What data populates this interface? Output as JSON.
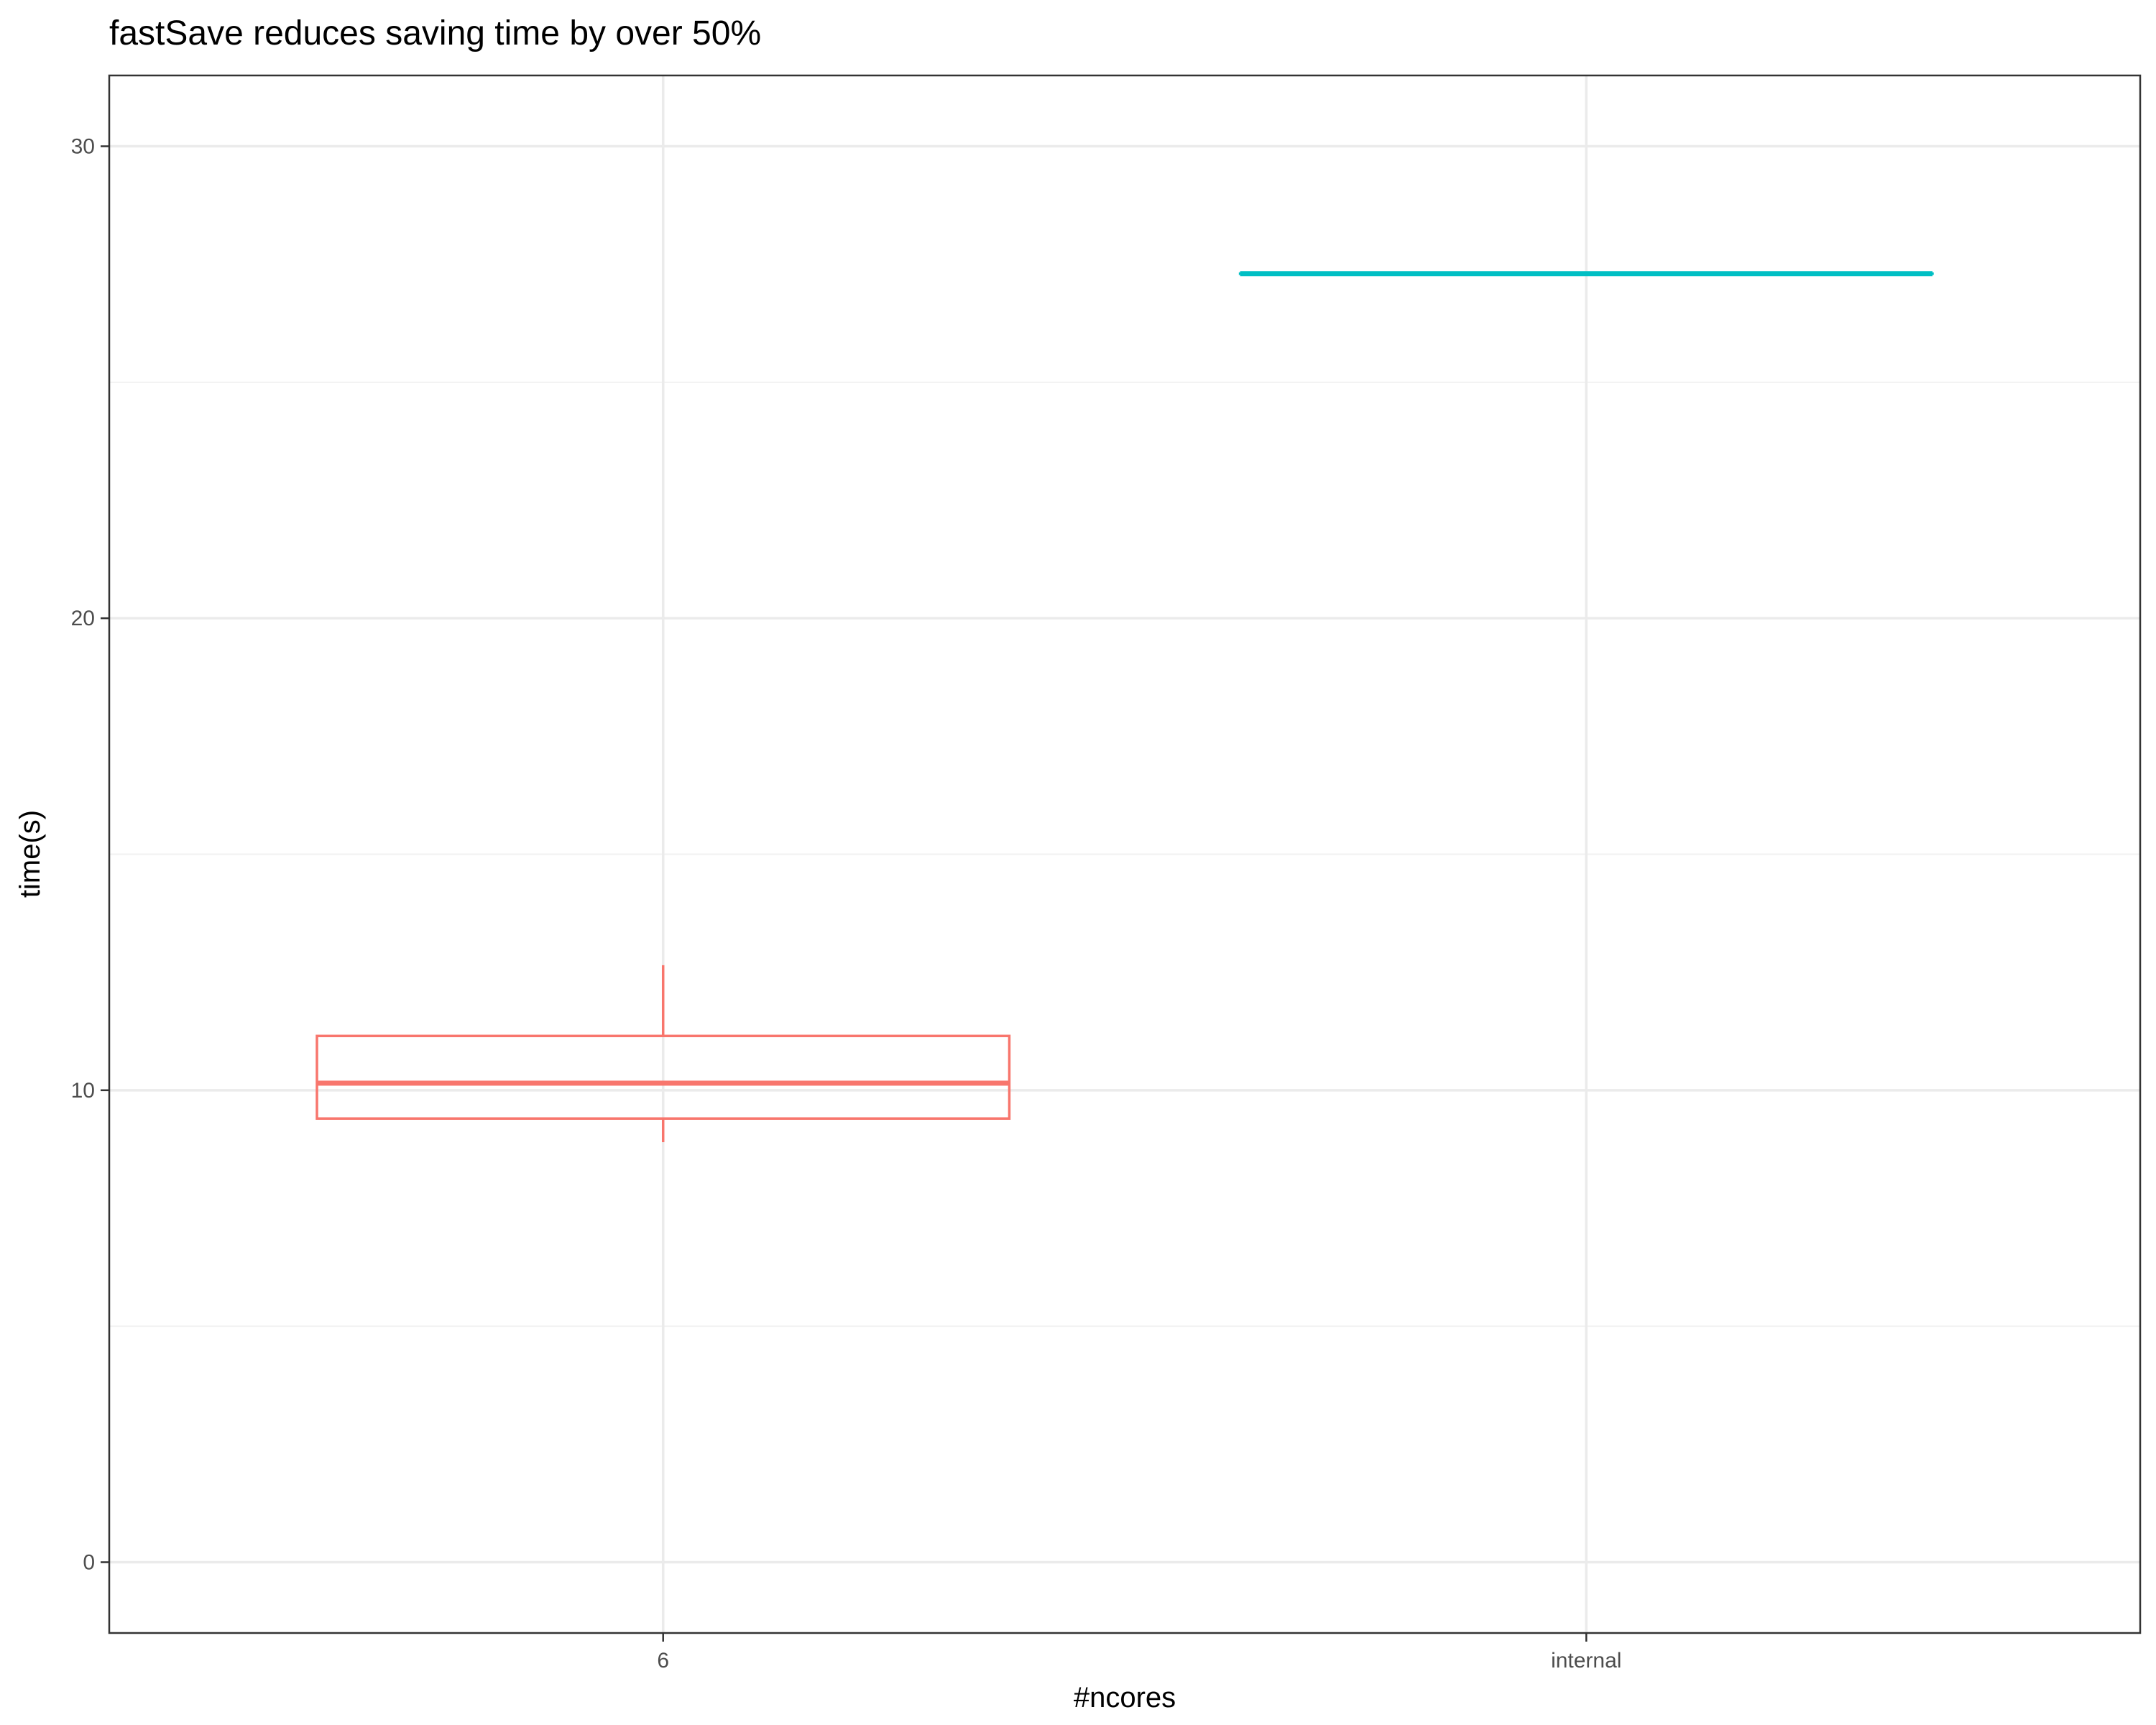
{
  "chart_data": {
    "type": "boxplot",
    "title": "fastSave reduces saving time by over 50%",
    "xlabel": "#ncores",
    "ylabel": "time(s)",
    "categories": [
      "6",
      "internal"
    ],
    "ylim": [
      -1.5,
      31.5
    ],
    "yticks": [
      0,
      10,
      20,
      30
    ],
    "grid": true,
    "legend": "none",
    "boxes": [
      {
        "category": "6",
        "min": 8.9,
        "q1": 9.4,
        "median": 10.15,
        "q3": 11.15,
        "max": 12.65,
        "color": "#F8766D"
      },
      {
        "category": "internal",
        "min": 27.3,
        "q1": 27.3,
        "median": 27.3,
        "q3": 27.3,
        "max": 27.3,
        "color": "#00BFC4"
      }
    ]
  }
}
